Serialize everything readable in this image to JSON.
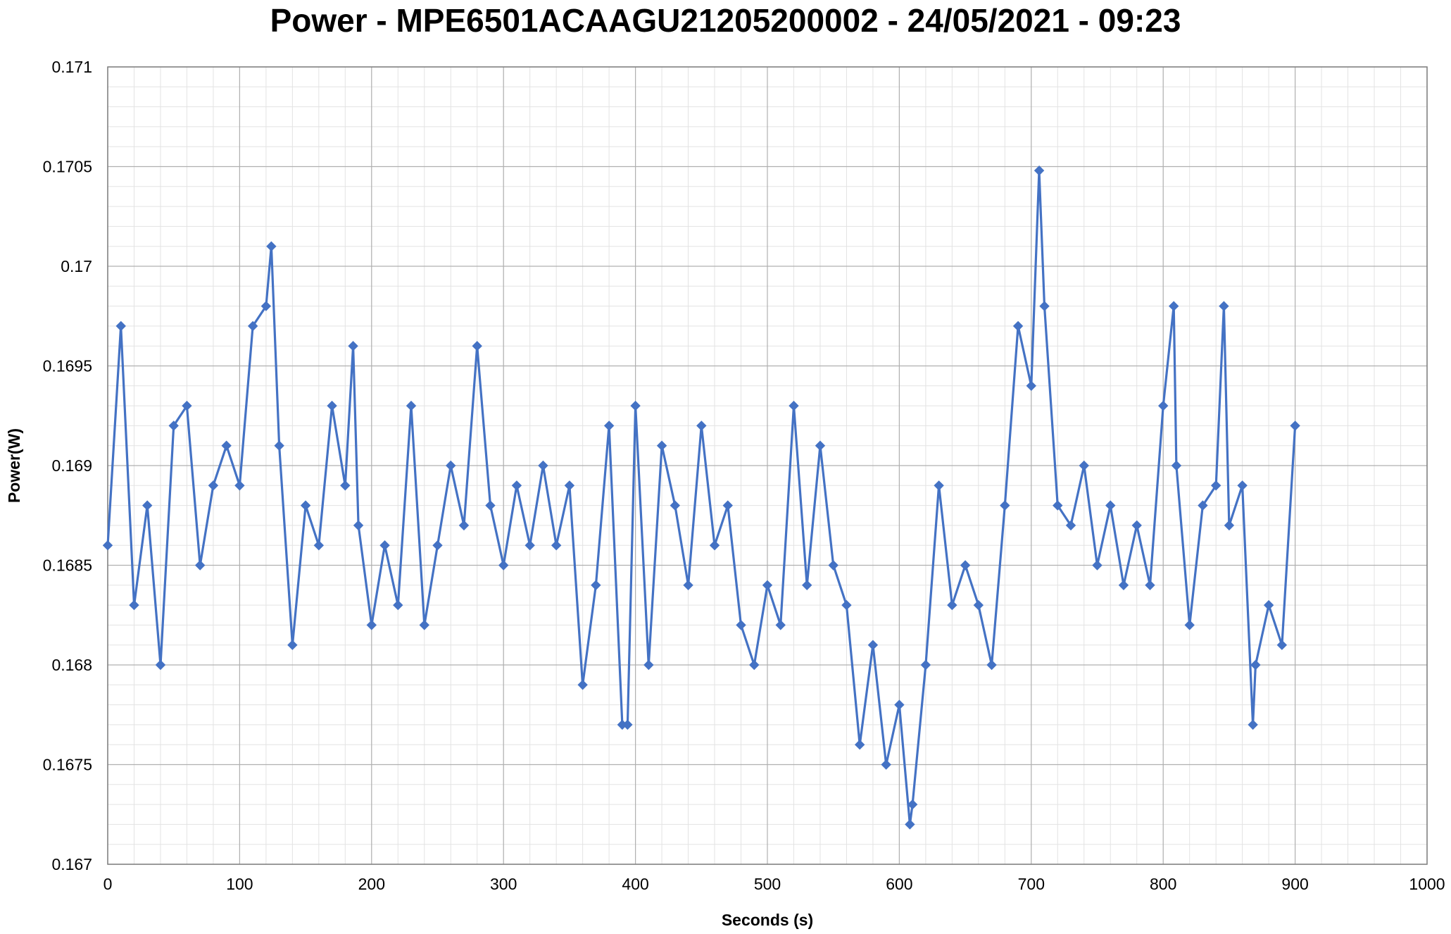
{
  "chart_data": {
    "type": "line",
    "title": "Power - MPE6501ACAAGU21205200002 - 24/05/2021 - 09:23",
    "xlabel": "Seconds (s)",
    "ylabel": "Power(W)",
    "xlim": [
      0,
      1000
    ],
    "ylim": [
      0.167,
      0.171
    ],
    "x_ticks": [
      0,
      100,
      200,
      300,
      400,
      500,
      600,
      700,
      800,
      900,
      1000
    ],
    "y_ticks": [
      0.167,
      0.1675,
      0.168,
      0.1685,
      0.169,
      0.1695,
      0.17,
      0.1705,
      0.171
    ],
    "x_tick_labels": [
      "0",
      "100",
      "200",
      "300",
      "400",
      "500",
      "600",
      "700",
      "800",
      "900",
      "1000"
    ],
    "y_tick_labels": [
      "0.167",
      "0.1675",
      "0.168",
      "0.1685",
      "0.169",
      "0.1695",
      "0.17",
      "0.1705",
      "0.171"
    ],
    "grid": true,
    "legend": "none",
    "series_color": "#4472C4",
    "marker": "diamond",
    "series": [
      {
        "x": [
          0,
          10,
          20,
          30,
          40,
          50,
          60,
          70,
          80,
          90,
          100,
          110,
          120,
          124,
          130,
          140,
          150,
          160,
          170,
          180,
          186,
          190,
          200,
          210,
          220,
          230,
          240,
          250,
          260,
          270,
          280,
          290,
          300,
          310,
          320,
          330,
          340,
          350,
          360,
          370,
          380,
          390,
          394,
          400,
          410,
          420,
          430,
          440,
          450,
          460,
          470,
          480,
          490,
          500,
          510,
          520,
          530,
          540,
          550,
          560,
          570,
          580,
          590,
          600,
          608,
          610,
          620,
          630,
          640,
          650,
          660,
          670,
          680,
          690,
          700,
          706,
          710,
          720,
          730,
          740,
          750,
          760,
          770,
          780,
          790,
          800,
          808,
          810,
          820,
          830,
          840,
          846,
          850,
          860,
          868,
          870,
          880,
          890,
          900
        ],
        "y": [
          0.1686,
          0.1697,
          0.1683,
          0.1688,
          0.168,
          0.1692,
          0.1693,
          0.1685,
          0.1689,
          0.1691,
          0.1689,
          0.1697,
          0.1698,
          0.1701,
          0.1691,
          0.1681,
          0.1688,
          0.1686,
          0.1693,
          0.1689,
          0.1696,
          0.1687,
          0.1682,
          0.1686,
          0.1683,
          0.1693,
          0.1682,
          0.1686,
          0.169,
          0.1687,
          0.1696,
          0.1688,
          0.1685,
          0.1689,
          0.1686,
          0.169,
          0.1686,
          0.1689,
          0.1679,
          0.1684,
          0.1692,
          0.1677,
          0.1677,
          0.1693,
          0.168,
          0.1691,
          0.1688,
          0.1684,
          0.1692,
          0.1686,
          0.1688,
          0.1682,
          0.168,
          0.1684,
          0.1682,
          0.1693,
          0.1684,
          0.1691,
          0.1685,
          0.1683,
          0.1676,
          0.1681,
          0.1675,
          0.1678,
          0.1672,
          0.1673,
          0.168,
          0.1689,
          0.1683,
          0.1685,
          0.1683,
          0.168,
          0.1688,
          0.1697,
          0.1694,
          0.17048,
          0.1698,
          0.1688,
          0.1687,
          0.169,
          0.1685,
          0.1688,
          0.1684,
          0.1687,
          0.1684,
          0.1693,
          0.1698,
          0.169,
          0.1682,
          0.1688,
          0.1689,
          0.1698,
          0.1687,
          0.1689,
          0.1677,
          0.168,
          0.1683,
          0.1681,
          0.1692
        ]
      }
    ]
  }
}
